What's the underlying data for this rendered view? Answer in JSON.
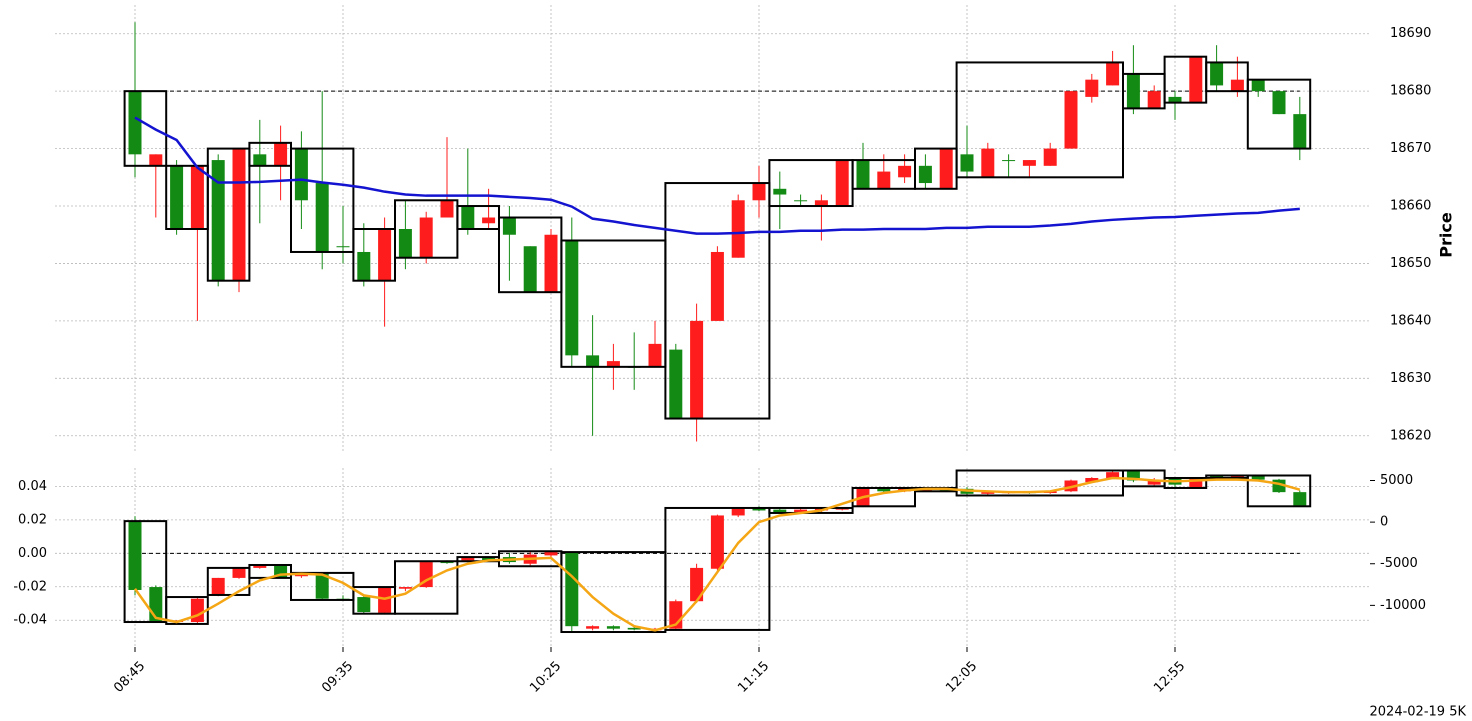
{
  "chart_data": [
    {
      "type": "candlestick",
      "ylabel": "Price",
      "yaxis_side": "right",
      "ylim": [
        18617,
        18695
      ],
      "yticks": [
        18620,
        18630,
        18640,
        18650,
        18660,
        18670,
        18680,
        18690
      ],
      "grid": true,
      "up_color": "#ff1c1c",
      "down_color": "#138a13",
      "reference_line": 18680,
      "candles": {
        "open": [
          18680,
          18667,
          18667,
          18656,
          18668,
          18647,
          18669,
          18667,
          18670,
          18664,
          18653,
          18652,
          18647,
          18656,
          18651,
          18658,
          18660,
          18657,
          18658,
          18653,
          18645,
          18654,
          18634,
          18632,
          18632,
          18632,
          18635,
          18623,
          18640,
          18651,
          18661,
          18663,
          18661,
          18660,
          18660,
          18668,
          18663,
          18665,
          18667,
          18663,
          18669,
          18665,
          18668,
          18667,
          18667,
          18670,
          18679,
          18681,
          18683,
          18677,
          18679,
          18678,
          18685,
          18680,
          18682,
          18680,
          18676
        ],
        "high": [
          18692,
          18669,
          18668,
          18667,
          18669,
          18670,
          18675,
          18674,
          18673,
          18680,
          18660,
          18657,
          18658,
          18661,
          18659,
          18672,
          18670,
          18663,
          18660,
          18653,
          18656,
          18658,
          18641,
          18636,
          18638,
          18640,
          18636,
          18643,
          18653,
          18662,
          18667,
          18666,
          18662,
          18662,
          18668,
          18671,
          18669,
          18669,
          18669,
          18670,
          18674,
          18671,
          18669,
          18668,
          18671,
          18680,
          18683,
          18687,
          18688,
          18681,
          18680,
          18686,
          18688,
          18686,
          18682,
          18680,
          18679
        ],
        "low": [
          18665,
          18658,
          18655,
          18640,
          18646,
          18645,
          18657,
          18661,
          18656,
          18649,
          18650,
          18646,
          18639,
          18649,
          18650,
          18658,
          18655,
          18656,
          18647,
          18645,
          18645,
          18632,
          18620,
          18628,
          18628,
          18632,
          18623,
          18619,
          18640,
          18651,
          18658,
          18656,
          18660,
          18654,
          18660,
          18663,
          18663,
          18664,
          18663,
          18663,
          18665,
          18665,
          18665,
          18665,
          18667,
          18670,
          18678,
          18681,
          18676,
          18677,
          18675,
          18678,
          18680,
          18679,
          18679,
          18676,
          18668
        ],
        "close": [
          18669,
          18669,
          18656,
          18667,
          18647,
          18670,
          18667,
          18671,
          18661,
          18652,
          18653,
          18647,
          18656,
          18651,
          18658,
          18661,
          18656,
          18658,
          18655,
          18645,
          18655,
          18634,
          18632,
          18633,
          18632,
          18636,
          18623,
          18640,
          18652,
          18661,
          18664,
          18662,
          18661,
          18661,
          18668,
          18663,
          18666,
          18667,
          18664,
          18670,
          18666,
          18670,
          18668,
          18668,
          18670,
          18680,
          18682,
          18685,
          18677,
          18680,
          18678,
          18686,
          18681,
          18682,
          18680,
          18676,
          18670
        ]
      },
      "line": {
        "color": "#1414d0",
        "values": [
          18675.4,
          18673.3,
          18671.5,
          18666.7,
          18664.1,
          18664.1,
          18664.2,
          18664.4,
          18664.6,
          18664.1,
          18663.7,
          18663.2,
          18662.5,
          18662.0,
          18661.8,
          18661.8,
          18661.8,
          18661.8,
          18661.6,
          18661.4,
          18661.1,
          18659.9,
          18657.8,
          18657.3,
          18656.7,
          18656.2,
          18655.7,
          18655.2,
          18655.2,
          18655.3,
          18655.5,
          18655.5,
          18655.7,
          18655.7,
          18655.9,
          18655.9,
          18656.0,
          18656.0,
          18656.0,
          18656.2,
          18656.2,
          18656.4,
          18656.4,
          18656.4,
          18656.6,
          18656.9,
          18657.3,
          18657.6,
          18657.8,
          18658.0,
          18658.1,
          18658.3,
          18658.5,
          18658.7,
          18658.8,
          18659.2,
          18659.5
        ]
      },
      "boxes": {
        "items": [
          [
            0,
            1,
            18667,
            18680
          ],
          [
            2,
            3,
            18656,
            18667
          ],
          [
            4,
            5,
            18647,
            18670
          ],
          [
            6,
            7,
            18667,
            18671
          ],
          [
            8,
            10,
            18652,
            18670
          ],
          [
            11,
            12,
            18647,
            18656
          ],
          [
            13,
            15,
            18651,
            18661
          ],
          [
            16,
            17,
            18656,
            18660
          ],
          [
            18,
            20,
            18645,
            18658
          ],
          [
            21,
            25,
            18632,
            18654
          ],
          [
            26,
            30,
            18623,
            18664
          ],
          [
            31,
            34,
            18660,
            18668
          ],
          [
            35,
            37,
            18663,
            18668
          ],
          [
            38,
            39,
            18663,
            18670
          ],
          [
            40,
            47,
            18665,
            18685
          ],
          [
            48,
            49,
            18677,
            18683
          ],
          [
            50,
            51,
            18678,
            18686
          ],
          [
            52,
            53,
            18680,
            18685
          ],
          [
            54,
            56,
            18670,
            18682
          ]
        ]
      }
    },
    {
      "type": "candlestick",
      "yaxis_side": "left",
      "categories": [
        "08:45",
        null,
        null,
        null,
        null,
        null,
        null,
        null,
        null,
        null,
        "09:35",
        null,
        null,
        null,
        null,
        null,
        null,
        null,
        null,
        null,
        "10:25",
        null,
        null,
        null,
        null,
        null,
        null,
        null,
        null,
        null,
        "11:15",
        null,
        null,
        null,
        null,
        null,
        null,
        null,
        null,
        null,
        "12:05",
        null,
        null,
        null,
        null,
        null,
        null,
        null,
        null,
        null,
        "12:55",
        null,
        null,
        null,
        null,
        null,
        null
      ],
      "ylim": [
        -0.056,
        0.051
      ],
      "yticks": [
        -0.04,
        -0.02,
        {
          "value": 0,
          "label": "0.00"
        },
        0.02,
        0.04
      ],
      "y2lim": [
        -15000,
        6500
      ],
      "y2ticks": [
        -10000,
        -5000,
        0,
        5000
      ],
      "grid": true,
      "up_color": "#ff1c1c",
      "down_color": "#138a13",
      "reference_line": 0,
      "annotation": "2024-02-19 5K",
      "candles": {
        "axis": "y2",
        "open": [
          120,
          -7800,
          -12000,
          -12000,
          -8750,
          -6700,
          -5500,
          -5150,
          -6500,
          -6100,
          -9200,
          -9000,
          -10900,
          -8000,
          -7800,
          -4800,
          -4600,
          -4300,
          -4200,
          -5000,
          -4000,
          -3700,
          -12800,
          -12500,
          -12700,
          -13000,
          -12800,
          -9500,
          -5600,
          800,
          1700,
          1500,
          1200,
          1400,
          1500,
          1900,
          4000,
          3700,
          3800,
          4000,
          4000,
          3400,
          3500,
          3600,
          3500,
          3700,
          4800,
          5300,
          6200,
          4500,
          5300,
          4200,
          5600,
          5300,
          5600,
          5100,
          3600
        ],
        "high": [
          700,
          -7600,
          -11800,
          -9000,
          -6700,
          -5500,
          -5150,
          -5100,
          -6100,
          -6000,
          -8800,
          -8900,
          -7800,
          -7800,
          -4700,
          -4600,
          -4200,
          -4200,
          -3700,
          -3500,
          -3500,
          -3600,
          -12400,
          -12400,
          -12600,
          -12700,
          -9300,
          -5000,
          900,
          1700,
          1900,
          1700,
          1600,
          1700,
          1800,
          4100,
          4100,
          4100,
          4100,
          4100,
          4200,
          3700,
          3700,
          3700,
          3800,
          5100,
          5400,
          6200,
          6300,
          5300,
          5400,
          5300,
          5700,
          5600,
          5700,
          5200,
          3800
        ],
        "low": [
          -8800,
          -12000,
          -12300,
          -12300,
          -8900,
          -6800,
          -5600,
          -6700,
          -6700,
          -9300,
          -9400,
          -11000,
          -11100,
          -8300,
          -7900,
          -5000,
          -4700,
          -4700,
          -5000,
          -5200,
          -4300,
          -13200,
          -13000,
          -13000,
          -13000,
          -13100,
          -13000,
          -9700,
          -5800,
          600,
          1300,
          1100,
          1100,
          1200,
          1400,
          1800,
          3600,
          3600,
          3700,
          3700,
          3300,
          3300,
          3400,
          3400,
          3400,
          3600,
          4700,
          5200,
          4800,
          4300,
          4200,
          4100,
          5200,
          5200,
          5000,
          3500,
          1900
        ],
        "close": [
          -8150,
          -11900,
          -11800,
          -9200,
          -6700,
          -5500,
          -5150,
          -6700,
          -6100,
          -9200,
          -9300,
          -10800,
          -7900,
          -7800,
          -4800,
          -4900,
          -4300,
          -4600,
          -4800,
          -3900,
          -3600,
          -12500,
          -12500,
          -12800,
          -12900,
          -12800,
          -9500,
          -5500,
          800,
          1600,
          1400,
          1200,
          1500,
          1600,
          1700,
          4000,
          3700,
          4000,
          4000,
          3800,
          3400,
          3600,
          3600,
          3500,
          3700,
          5000,
          5300,
          6000,
          5000,
          5100,
          4500,
          5200,
          5300,
          5500,
          5100,
          3600,
          2000
        ]
      },
      "line": {
        "axis": "y2",
        "color": "#f5a614",
        "values": [
          -8000,
          -11500,
          -12000,
          -11200,
          -9800,
          -8300,
          -7000,
          -6300,
          -6200,
          -6300,
          -7300,
          -8800,
          -9200,
          -8600,
          -7000,
          -5800,
          -5000,
          -4600,
          -4500,
          -4400,
          -4300,
          -6500,
          -9000,
          -11000,
          -12500,
          -13000,
          -12300,
          -9500,
          -6000,
          -2500,
          0,
          800,
          1100,
          1400,
          2200,
          3000,
          3500,
          3800,
          4000,
          4000,
          3800,
          3700,
          3600,
          3600,
          3700,
          4200,
          4800,
          5300,
          5200,
          5000,
          4900,
          5000,
          5100,
          5100,
          5000,
          4600,
          3900
        ]
      },
      "boxes": {
        "axis": "y2",
        "items": [
          [
            0,
            1,
            -12000,
            120
          ],
          [
            2,
            3,
            -12230,
            -9000
          ],
          [
            4,
            5,
            -8750,
            -5500
          ],
          [
            6,
            7,
            -6700,
            -5150
          ],
          [
            8,
            10,
            -9350,
            -6100
          ],
          [
            11,
            12,
            -11000,
            -7800
          ],
          [
            13,
            15,
            -11000,
            -4700
          ],
          [
            16,
            17,
            -4700,
            -4200
          ],
          [
            18,
            20,
            -5300,
            -3500
          ],
          [
            21,
            25,
            -13200,
            -3600
          ],
          [
            26,
            30,
            -12950,
            1700
          ],
          [
            31,
            34,
            1100,
            1700
          ],
          [
            35,
            37,
            1900,
            4100
          ],
          [
            38,
            39,
            3700,
            4100
          ],
          [
            40,
            47,
            3200,
            6200
          ],
          [
            48,
            49,
            4300,
            6200
          ],
          [
            50,
            51,
            4100,
            5300
          ],
          [
            52,
            53,
            5300,
            5600
          ],
          [
            54,
            56,
            1900,
            5600
          ]
        ]
      }
    }
  ]
}
